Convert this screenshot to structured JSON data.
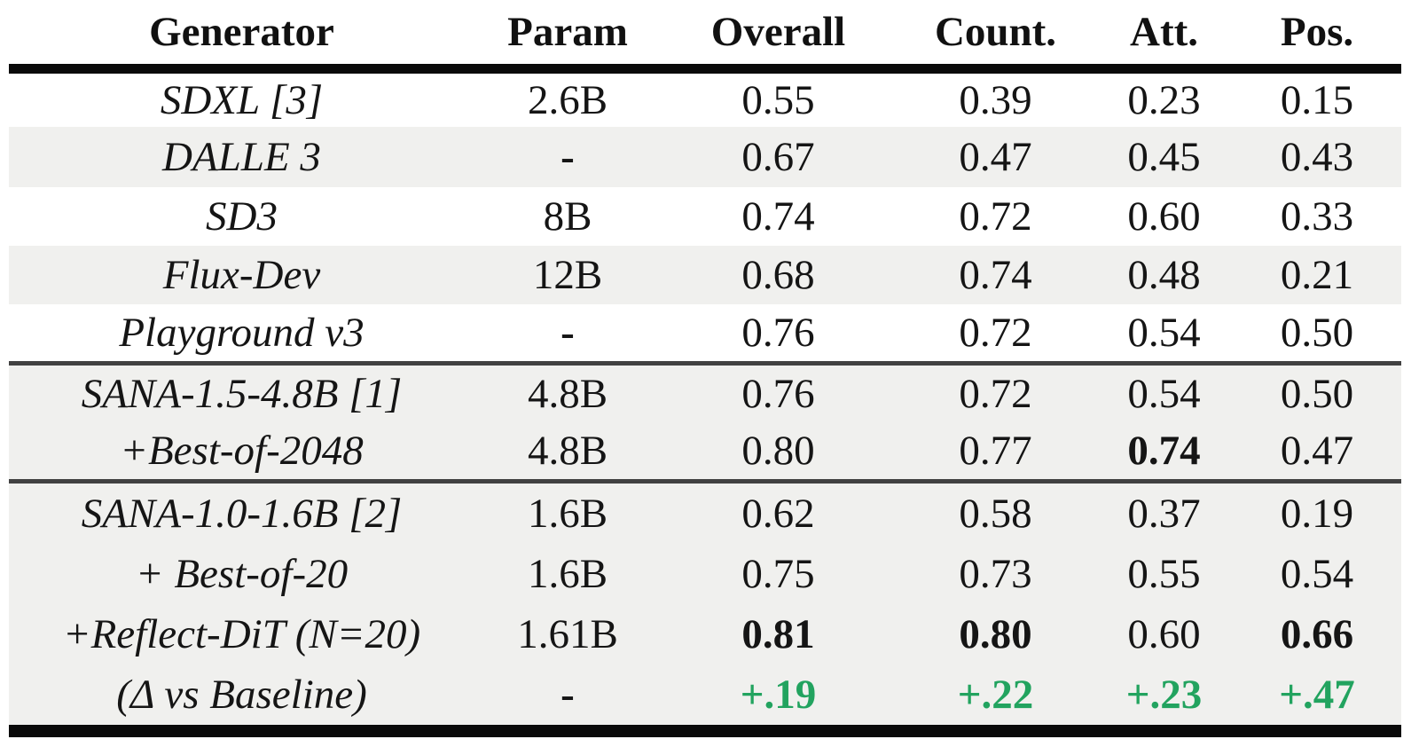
{
  "table": {
    "columns": [
      "Generator",
      "Param",
      "Overall",
      "Count.",
      "Att.",
      "Pos."
    ],
    "rows": [
      {
        "generator": "SDXL [3]",
        "param": "2.6B",
        "overall": "0.55",
        "count": "0.39",
        "att": "0.23",
        "pos": "0.15"
      },
      {
        "generator": "DALLE 3",
        "param": "-",
        "overall": "0.67",
        "count": "0.47",
        "att": "0.45",
        "pos": "0.43"
      },
      {
        "generator": "SD3",
        "param": "8B",
        "overall": "0.74",
        "count": "0.72",
        "att": "0.60",
        "pos": "0.33"
      },
      {
        "generator": "Flux-Dev",
        "param": "12B",
        "overall": "0.68",
        "count": "0.74",
        "att": "0.48",
        "pos": "0.21"
      },
      {
        "generator": "Playground v3",
        "param": "-",
        "overall": "0.76",
        "count": "0.72",
        "att": "0.54",
        "pos": "0.50"
      },
      {
        "generator": "SANA-1.5-4.8B [1]",
        "param": "4.8B",
        "overall": "0.76",
        "count": "0.72",
        "att": "0.54",
        "pos": "0.50"
      },
      {
        "generator": "+Best-of-2048",
        "param": "4.8B",
        "overall": "0.80",
        "count": "0.77",
        "att": "0.74",
        "pos": "0.47"
      },
      {
        "generator": "SANA-1.0-1.6B [2]",
        "param": "1.6B",
        "overall": "0.62",
        "count": "0.58",
        "att": "0.37",
        "pos": "0.19"
      },
      {
        "generator": "+ Best-of-20",
        "param": "1.6B",
        "overall": "0.75",
        "count": "0.73",
        "att": "0.55",
        "pos": "0.54"
      },
      {
        "generator": "+Reflect-DiT (N=20)",
        "param": "1.61B",
        "overall": "0.81",
        "count": "0.80",
        "att": "0.60",
        "pos": "0.66"
      },
      {
        "generator": "(Δ vs Baseline)",
        "param": "-",
        "overall": "+.19",
        "count": "+.22",
        "att": "+.23",
        "pos": "+.47"
      }
    ],
    "colors": {
      "row_band": "#f0f0ee",
      "delta_green": "#22a35f",
      "rule_black": "#0a0a0a",
      "rule_thin": "#414141"
    }
  }
}
